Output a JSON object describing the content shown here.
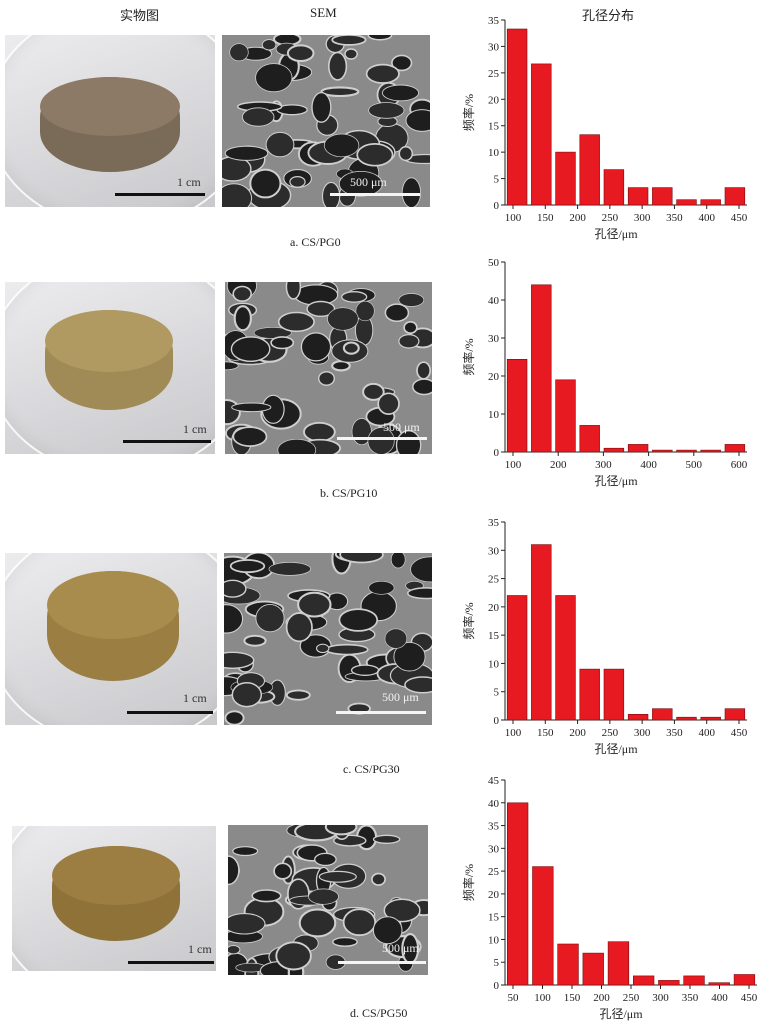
{
  "headers": {
    "photo": "实物图",
    "sem": "SEM",
    "dist": "孔径分布"
  },
  "colors": {
    "bar_fill": "#e81a21",
    "bar_stroke": "#7a0a0e",
    "axis": "#222222"
  },
  "panels": [
    {
      "caption": "a.  CS/PG0",
      "photo_scale": "1 cm",
      "sem_scale": "500 μm",
      "scaffold_color": "#7a6a58",
      "scaffold_top": "#8c7a66"
    },
    {
      "caption": "b.  CS/PG10",
      "photo_scale": "1 cm",
      "sem_scale": "500 μm",
      "scaffold_color": "#a08a55",
      "scaffold_top": "#b09a62"
    },
    {
      "caption": "c.  CS/PG30",
      "photo_scale": "1 cm",
      "sem_scale": "500 μm",
      "scaffold_color": "#9a7e42",
      "scaffold_top": "#a88c4d"
    },
    {
      "caption": "d.  CS/PG50",
      "photo_scale": "1 cm",
      "sem_scale": "500 μm",
      "scaffold_color": "#8e7238",
      "scaffold_top": "#9c7e42"
    }
  ],
  "chart_data": [
    {
      "type": "bar",
      "xlabel": "孔径/μm",
      "ylabel": "频率/%",
      "ylim": [
        0,
        35
      ],
      "yticks": [
        0,
        5,
        10,
        15,
        20,
        25,
        30,
        35
      ],
      "xticks": [
        "100",
        "150",
        "200",
        "250",
        "300",
        "350",
        "400",
        "450"
      ],
      "values": [
        33.3,
        26.7,
        10,
        13.3,
        6.7,
        3.3,
        3.3,
        1,
        1,
        3.3
      ]
    },
    {
      "type": "bar",
      "xlabel": "孔径/μm",
      "ylabel": "频率/%",
      "ylim": [
        0,
        50
      ],
      "yticks": [
        0,
        10,
        20,
        30,
        40,
        50
      ],
      "xticks": [
        "100",
        "200",
        "300",
        "400",
        "500",
        "600"
      ],
      "values": [
        24.4,
        44,
        19,
        7,
        1,
        2,
        0.5,
        0.5,
        0.5,
        2
      ]
    },
    {
      "type": "bar",
      "xlabel": "孔径/μm",
      "ylabel": "频率/%",
      "ylim": [
        0,
        35
      ],
      "yticks": [
        0,
        5,
        10,
        15,
        20,
        25,
        30,
        35
      ],
      "xticks": [
        "100",
        "150",
        "200",
        "250",
        "300",
        "350",
        "400",
        "450"
      ],
      "values": [
        22,
        31,
        22,
        9,
        9,
        1,
        2,
        0.5,
        0.5,
        2
      ]
    },
    {
      "type": "bar",
      "xlabel": "孔径/μm",
      "ylabel": "频率/%",
      "ylim": [
        0,
        45
      ],
      "yticks": [
        0,
        5,
        10,
        15,
        20,
        25,
        30,
        35,
        40,
        45
      ],
      "xticks": [
        "50",
        "100",
        "150",
        "200",
        "250",
        "300",
        "350",
        "400",
        "450"
      ],
      "values": [
        40,
        26,
        9,
        7,
        9.5,
        2,
        1,
        2,
        0.5,
        2.3
      ]
    }
  ]
}
